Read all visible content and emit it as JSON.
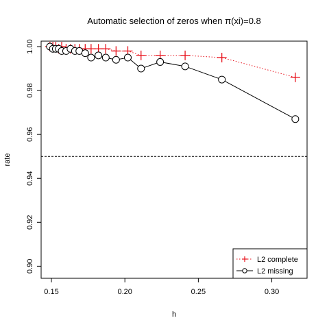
{
  "chart_data": {
    "type": "line",
    "title": "Automatic selection of zeros when π(xi)=0.8",
    "xlabel": "h",
    "ylabel": "rate",
    "xlim": [
      0.143,
      0.324
    ],
    "ylim": [
      0.8945,
      1.0025
    ],
    "x_ticks": [
      0.15,
      0.2,
      0.25,
      0.3
    ],
    "x_tick_labels": [
      "0.15",
      "0.20",
      "0.25",
      "0.30"
    ],
    "y_ticks": [
      0.9,
      0.92,
      0.94,
      0.96,
      0.98,
      1.0
    ],
    "y_tick_labels": [
      "0.90",
      "0.92",
      "0.94",
      "0.96",
      "0.98",
      "1.00"
    ],
    "reference_line": {
      "y": 0.95,
      "style": "dashed",
      "color": "#000000"
    },
    "grid": false,
    "legend_position": "bottom-right",
    "series": [
      {
        "name": "L2 complete",
        "color": "#e8111b",
        "line_style": "dotted",
        "marker": "plus",
        "x": [
          0.149,
          0.151,
          0.153,
          0.155,
          0.157,
          0.16,
          0.163,
          0.166,
          0.169,
          0.173,
          0.177,
          0.182,
          0.187,
          0.194,
          0.202,
          0.211,
          0.224,
          0.241,
          0.266,
          0.316
        ],
        "y": [
          1.0,
          1.0,
          1.0,
          0.999,
          1.0,
          0.999,
          0.999,
          0.999,
          0.999,
          0.999,
          0.999,
          0.999,
          0.999,
          0.998,
          0.998,
          0.996,
          0.996,
          0.996,
          0.995,
          0.986
        ]
      },
      {
        "name": "L2 missing",
        "color": "#000000",
        "line_style": "solid",
        "marker": "circle",
        "x": [
          0.149,
          0.151,
          0.153,
          0.155,
          0.157,
          0.16,
          0.163,
          0.166,
          0.169,
          0.173,
          0.177,
          0.182,
          0.187,
          0.194,
          0.202,
          0.211,
          0.224,
          0.241,
          0.266,
          0.316
        ],
        "y": [
          1.0,
          0.999,
          0.999,
          0.999,
          0.998,
          0.998,
          0.999,
          0.998,
          0.998,
          0.997,
          0.995,
          0.996,
          0.995,
          0.994,
          0.995,
          0.99,
          0.993,
          0.991,
          0.985,
          0.967
        ]
      }
    ]
  }
}
